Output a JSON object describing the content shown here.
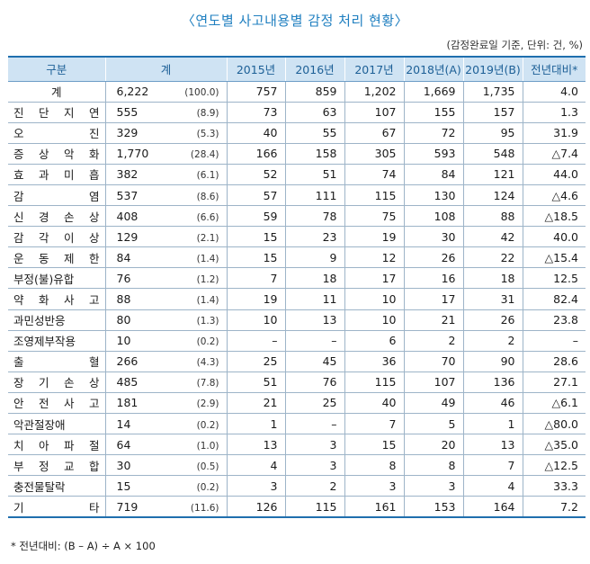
{
  "title": "〈연도별 사고내용별 감정 처리 현황〉",
  "unit_note": "(감정완료일 기준, 단위: 건, %)",
  "columns": [
    "구분",
    "계",
    "2015년",
    "2016년",
    "2017년",
    "2018년(A)",
    "2019년(B)",
    "전년대비*"
  ],
  "rows": [
    {
      "cat": "계",
      "total": "6,222",
      "pct": "(100.0)",
      "y2015": "757",
      "y2016": "859",
      "y2017": "1,202",
      "y2018": "1,669",
      "y2019": "1,735",
      "change": "4.0"
    },
    {
      "cat": "진단지연",
      "total": "555",
      "pct": "(8.9)",
      "y2015": "73",
      "y2016": "63",
      "y2017": "107",
      "y2018": "155",
      "y2019": "157",
      "change": "1.3"
    },
    {
      "cat": "오진",
      "total": "329",
      "pct": "(5.3)",
      "y2015": "40",
      "y2016": "55",
      "y2017": "67",
      "y2018": "72",
      "y2019": "95",
      "change": "31.9"
    },
    {
      "cat": "증상악화",
      "total": "1,770",
      "pct": "(28.4)",
      "y2015": "166",
      "y2016": "158",
      "y2017": "305",
      "y2018": "593",
      "y2019": "548",
      "change": "△7.4"
    },
    {
      "cat": "효과미흡",
      "total": "382",
      "pct": "(6.1)",
      "y2015": "52",
      "y2016": "51",
      "y2017": "74",
      "y2018": "84",
      "y2019": "121",
      "change": "44.0"
    },
    {
      "cat": "감염",
      "total": "537",
      "pct": "(8.6)",
      "y2015": "57",
      "y2016": "111",
      "y2017": "115",
      "y2018": "130",
      "y2019": "124",
      "change": "△4.6"
    },
    {
      "cat": "신경손상",
      "total": "408",
      "pct": "(6.6)",
      "y2015": "59",
      "y2016": "78",
      "y2017": "75",
      "y2018": "108",
      "y2019": "88",
      "change": "△18.5"
    },
    {
      "cat": "감각이상",
      "total": "129",
      "pct": "(2.1)",
      "y2015": "15",
      "y2016": "23",
      "y2017": "19",
      "y2018": "30",
      "y2019": "42",
      "change": "40.0"
    },
    {
      "cat": "운동제한",
      "total": "84",
      "pct": "(1.4)",
      "y2015": "15",
      "y2016": "9",
      "y2017": "12",
      "y2018": "26",
      "y2019": "22",
      "change": "△15.4"
    },
    {
      "cat": "부정(불)유합",
      "total": "76",
      "pct": "(1.2)",
      "y2015": "7",
      "y2016": "18",
      "y2017": "17",
      "y2018": "16",
      "y2019": "18",
      "change": "12.5"
    },
    {
      "cat": "약화사고",
      "total": "88",
      "pct": "(1.4)",
      "y2015": "19",
      "y2016": "11",
      "y2017": "10",
      "y2018": "17",
      "y2019": "31",
      "change": "82.4"
    },
    {
      "cat": "과민성반응",
      "total": "80",
      "pct": "(1.3)",
      "y2015": "10",
      "y2016": "13",
      "y2017": "10",
      "y2018": "21",
      "y2019": "26",
      "change": "23.8"
    },
    {
      "cat": "조영제부작용",
      "total": "10",
      "pct": "(0.2)",
      "y2015": "–",
      "y2016": "–",
      "y2017": "6",
      "y2018": "2",
      "y2019": "2",
      "change": "–"
    },
    {
      "cat": "출혈",
      "total": "266",
      "pct": "(4.3)",
      "y2015": "25",
      "y2016": "45",
      "y2017": "36",
      "y2018": "70",
      "y2019": "90",
      "change": "28.6"
    },
    {
      "cat": "장기손상",
      "total": "485",
      "pct": "(7.8)",
      "y2015": "51",
      "y2016": "76",
      "y2017": "115",
      "y2018": "107",
      "y2019": "136",
      "change": "27.1"
    },
    {
      "cat": "안전사고",
      "total": "181",
      "pct": "(2.9)",
      "y2015": "21",
      "y2016": "25",
      "y2017": "40",
      "y2018": "49",
      "y2019": "46",
      "change": "△6.1"
    },
    {
      "cat": "악관절장애",
      "total": "14",
      "pct": "(0.2)",
      "y2015": "1",
      "y2016": "–",
      "y2017": "7",
      "y2018": "5",
      "y2019": "1",
      "change": "△80.0"
    },
    {
      "cat": "치아파절",
      "total": "64",
      "pct": "(1.0)",
      "y2015": "13",
      "y2016": "3",
      "y2017": "15",
      "y2018": "20",
      "y2019": "13",
      "change": "△35.0"
    },
    {
      "cat": "부정교합",
      "total": "30",
      "pct": "(0.5)",
      "y2015": "4",
      "y2016": "3",
      "y2017": "8",
      "y2018": "8",
      "y2019": "7",
      "change": "△12.5"
    },
    {
      "cat": "충전물탈락",
      "total": "15",
      "pct": "(0.2)",
      "y2015": "3",
      "y2016": "2",
      "y2017": "3",
      "y2018": "3",
      "y2019": "4",
      "change": "33.3"
    },
    {
      "cat": "기타",
      "total": "719",
      "pct": "(11.6)",
      "y2015": "126",
      "y2016": "115",
      "y2017": "161",
      "y2018": "153",
      "y2019": "164",
      "change": "7.2"
    }
  ],
  "footnote": "* 전년대비: (B – A) ÷ A × 100"
}
